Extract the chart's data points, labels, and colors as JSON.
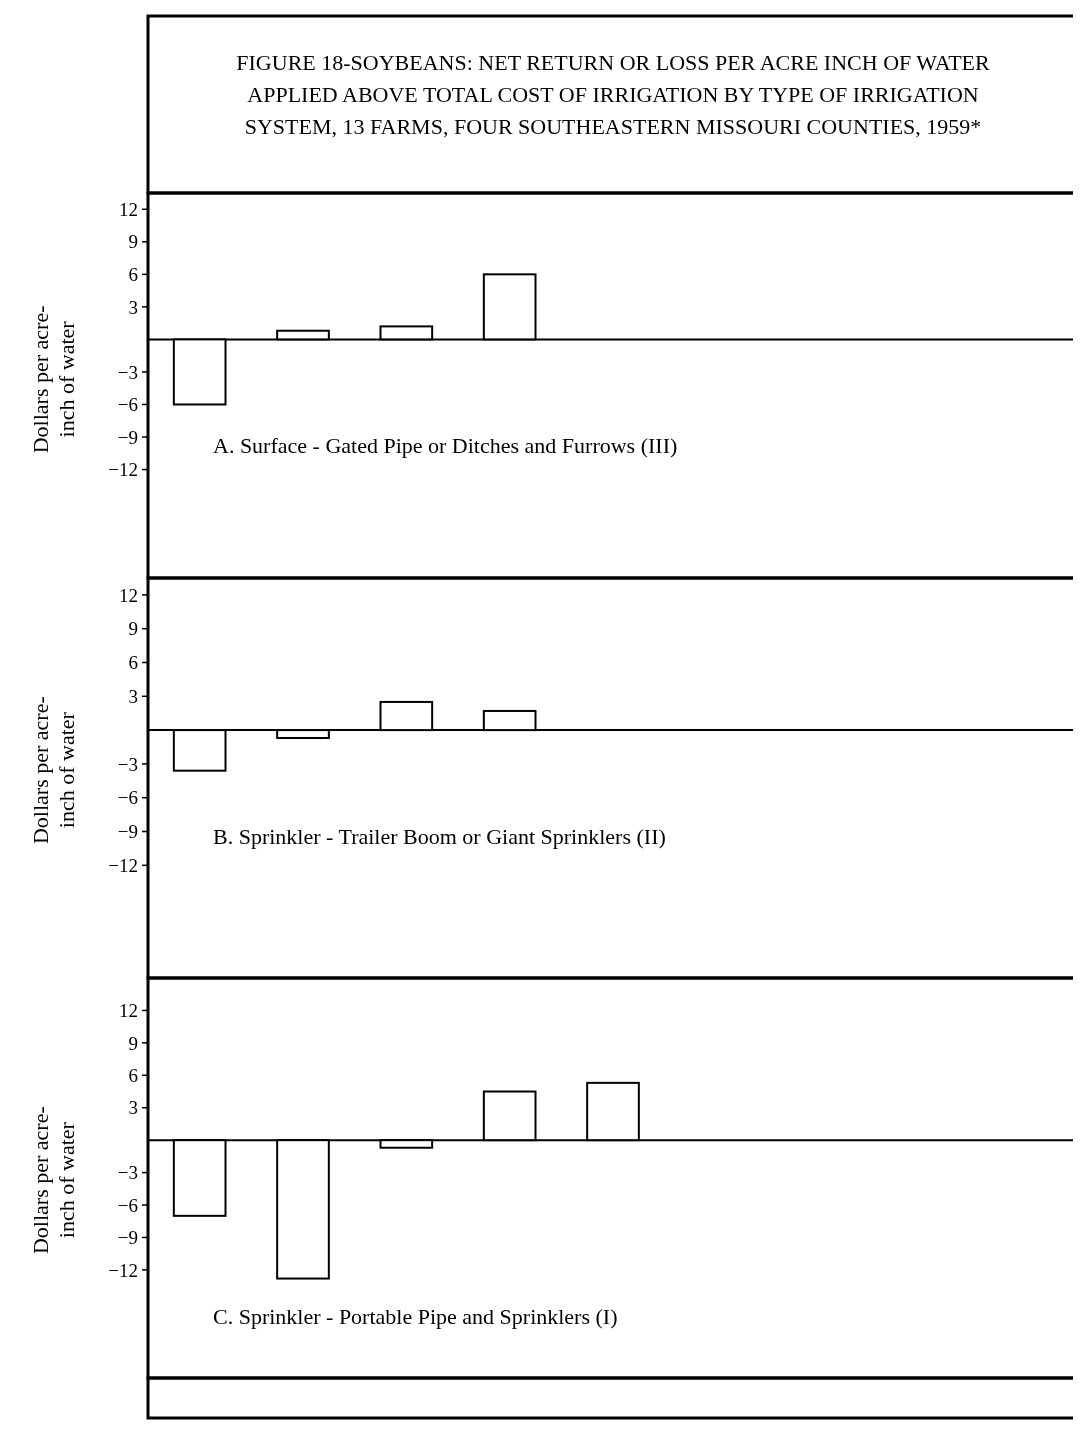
{
  "chart_data": [
    {
      "type": "bar",
      "title": "FIGURE 18-SOYBEANS: NET RETURN OR LOSS PER ACRE INCH OF WATER APPLIED ABOVE TOTAL COST OF IRRIGATION BY TYPE OF IRRIGATION SYSTEM, 13 FARMS, FOUR SOUTHEASTERN MISSOURI COUNTIES, 1959*",
      "subtitle": "A.  Surface - Gated Pipe or Ditches and Furrows (III)",
      "ylabel": "Dollars per acre-inch of water",
      "categories": [
        null,
        null,
        null,
        null,
        null,
        null,
        null,
        null,
        null
      ],
      "values": [
        -6.0,
        0.8,
        1.2,
        6.0,
        null,
        null,
        null,
        null,
        null
      ],
      "color": "#ffffff",
      "ylim": [
        -22,
        13.5
      ],
      "yticks": [
        -12,
        -9,
        -6,
        -3,
        3,
        6,
        9,
        12
      ]
    },
    {
      "type": "bar",
      "subtitle": "B.  Sprinkler - Trailer Boom or Giant Sprinklers (II)",
      "ylabel": "Dollars per acre-inch of water",
      "categories": [
        null,
        null,
        null,
        null,
        null,
        null,
        null,
        null,
        null
      ],
      "values": [
        -3.6,
        -0.7,
        2.5,
        1.7,
        null,
        null,
        null,
        null,
        null
      ],
      "color": "#ffffff",
      "ylim": [
        -22,
        13.5
      ],
      "yticks": [
        -12,
        -9,
        -6,
        -3,
        3,
        6,
        9,
        12
      ]
    },
    {
      "type": "bar",
      "subtitle": "C.  Sprinkler - Portable Pipe and Sprinklers (I)",
      "ylabel": "Dollars per acre-inch of water",
      "categories": [
        null,
        null,
        null,
        null,
        null,
        null,
        null,
        null,
        null
      ],
      "values": [
        -7.0,
        -12.8,
        -0.7,
        4.5,
        5.3,
        null,
        null,
        null,
        null
      ],
      "color": "#ffffff",
      "ylim": [
        -22,
        15
      ],
      "yticks": [
        -12,
        -9,
        -6,
        -3,
        3,
        6,
        9,
        12
      ]
    }
  ]
}
